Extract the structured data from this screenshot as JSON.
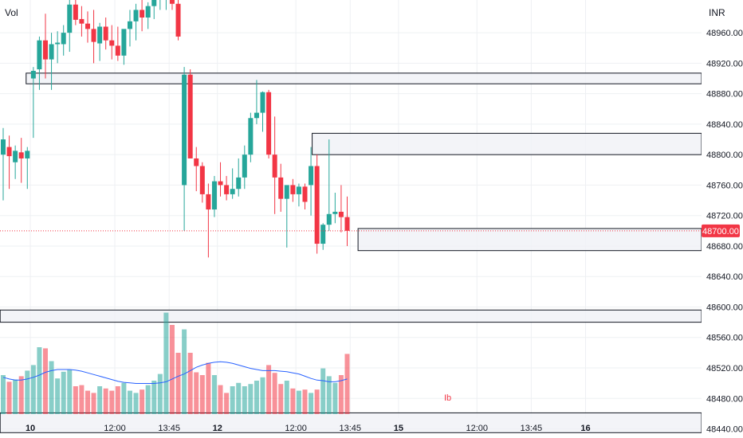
{
  "header": {
    "vol_label": "Vol",
    "currency": "INR"
  },
  "colors": {
    "up": "#26a69a",
    "down": "#f23645",
    "zone_fill": "#f0f1f6",
    "zone_stroke": "#131722",
    "grid": "#eef0f3",
    "price_line": "#f23645",
    "ma_line": "#2962ff",
    "ib_label": "#f23645"
  },
  "current_price": {
    "value": 48700,
    "label": "48700.00"
  },
  "ib_label": "Ib",
  "chart_data": {
    "type": "candlestick",
    "y_axis": {
      "min": 48428,
      "max": 49003,
      "ticks": [
        48440,
        48480,
        48520,
        48560,
        48600,
        48640,
        48680,
        48720,
        48760,
        48800,
        48840,
        48880,
        48920,
        48960
      ]
    },
    "x_tick_labels": [
      "10",
      "12:00",
      "13:45",
      "12",
      "12:00",
      "13:45",
      "15",
      "12:00",
      "13:45",
      "16"
    ],
    "x_tick_bars": [
      4.5,
      18.5,
      27.5,
      35.5,
      48.5,
      57.5,
      65.5,
      78.5,
      87.5,
      96.5
    ],
    "bold_ticks": [
      "10",
      "12",
      "15",
      "16"
    ],
    "zones": [
      {
        "name": "zone-48920",
        "bar_from": 3.8,
        "top": 48907,
        "bottom": 48893
      },
      {
        "name": "zone-48800",
        "bar_from": 51.2,
        "top": 48828,
        "bottom": 48800
      },
      {
        "name": "zone-48690",
        "bar_from": 58.8,
        "top": 48703,
        "bottom": 48674
      },
      {
        "name": "zone-48590",
        "bar_from": -0.5,
        "top": 48596,
        "bottom": 48580
      },
      {
        "name": "zone-48450",
        "bar_from": -0.5,
        "top": 48461,
        "bottom": 48435
      }
    ],
    "candles": [
      [
        48800,
        48835,
        48740,
        48820,
        70
      ],
      [
        48810,
        48825,
        48755,
        48798,
        58
      ],
      [
        48790,
        48812,
        48768,
        48805,
        62
      ],
      [
        48803,
        48822,
        48763,
        48795,
        68
      ],
      [
        48795,
        48810,
        48755,
        48805,
        78
      ],
      [
        48900,
        48915,
        48822,
        48910,
        88
      ],
      [
        48912,
        48955,
        48885,
        48950,
        120
      ],
      [
        48950,
        48985,
        48900,
        48925,
        118
      ],
      [
        48925,
        48960,
        48885,
        48945,
        95
      ],
      [
        48945,
        48962,
        48920,
        48947,
        64
      ],
      [
        48945,
        48970,
        48930,
        48960,
        76
      ],
      [
        48960,
        49010,
        48935,
        48997,
        80
      ],
      [
        48997,
        49010,
        48970,
        48977,
        50
      ],
      [
        48978,
        48995,
        48955,
        48972,
        52
      ],
      [
        48972,
        48988,
        48947,
        48965,
        42
      ],
      [
        48965,
        48990,
        48920,
        48948,
        38
      ],
      [
        48946,
        48973,
        48923,
        48968,
        50
      ],
      [
        48968,
        48980,
        48938,
        48950,
        46
      ],
      [
        48950,
        48970,
        48925,
        48943,
        42
      ],
      [
        48943,
        48968,
        48923,
        48930,
        50
      ],
      [
        48930,
        48962,
        48918,
        48965,
        56
      ],
      [
        48965,
        48990,
        48942,
        48975,
        42
      ],
      [
        48975,
        48998,
        48950,
        48990,
        38
      ],
      [
        48990,
        49005,
        48962,
        48980,
        44
      ],
      [
        48980,
        49000,
        48965,
        48995,
        52
      ],
      [
        48995,
        49010,
        48978,
        49005,
        60
      ],
      [
        49005,
        49018,
        48990,
        49012,
        72
      ],
      [
        49012,
        49025,
        48990,
        49020,
        182
      ],
      [
        49020,
        49025,
        48990,
        48998,
        160
      ],
      [
        48998,
        49003,
        48950,
        48955,
        110
      ],
      [
        48760,
        48915,
        48700,
        48905,
        152
      ],
      [
        48905,
        48912,
        48795,
        48795,
        110
      ],
      [
        48795,
        48810,
        48752,
        48785,
        75
      ],
      [
        48785,
        48790,
        48737,
        48748,
        70
      ],
      [
        48748,
        48762,
        48665,
        48728,
        92
      ],
      [
        48728,
        48772,
        48718,
        48765,
        70
      ],
      [
        48765,
        48790,
        48745,
        48760,
        52
      ],
      [
        48760,
        48772,
        48740,
        48748,
        38
      ],
      [
        48748,
        48782,
        48742,
        48755,
        50
      ],
      [
        48755,
        48795,
        48745,
        48770,
        56
      ],
      [
        48770,
        48812,
        48755,
        48800,
        50
      ],
      [
        48800,
        48855,
        48790,
        48848,
        54
      ],
      [
        48848,
        48898,
        48840,
        48855,
        60
      ],
      [
        48855,
        48883,
        48830,
        48882,
        66
      ],
      [
        48882,
        48885,
        48795,
        48800,
        88
      ],
      [
        48800,
        48850,
        48722,
        48770,
        74
      ],
      [
        48770,
        48788,
        48725,
        48742,
        54
      ],
      [
        48742,
        48758,
        48678,
        48760,
        60
      ],
      [
        48760,
        48768,
        48738,
        48748,
        46
      ],
      [
        48748,
        48762,
        48732,
        48758,
        42
      ],
      [
        48758,
        48762,
        48728,
        48738,
        44
      ],
      [
        48760,
        48810,
        48720,
        48785,
        38
      ],
      [
        48785,
        48800,
        48670,
        48683,
        44
      ],
      [
        48683,
        48710,
        48675,
        48708,
        82
      ],
      [
        48708,
        48820,
        48700,
        48722,
        68
      ],
      [
        48722,
        48750,
        48710,
        48725,
        56
      ],
      [
        48725,
        48760,
        48698,
        48718,
        70
      ],
      [
        48718,
        48745,
        48680,
        48700,
        108
      ]
    ],
    "ma_values": [
      66,
      63,
      61,
      61,
      63,
      66,
      70,
      75,
      78,
      80,
      80,
      80,
      79,
      77,
      74,
      71,
      68,
      65,
      62,
      59,
      57,
      56,
      55,
      55,
      55,
      55,
      56,
      58,
      63,
      68,
      72,
      78,
      84,
      88,
      91,
      93,
      94,
      93,
      91,
      88,
      85,
      82,
      80,
      78,
      78,
      78,
      77,
      76,
      74,
      72,
      68,
      64,
      61,
      60,
      58,
      58,
      60,
      63
    ]
  }
}
